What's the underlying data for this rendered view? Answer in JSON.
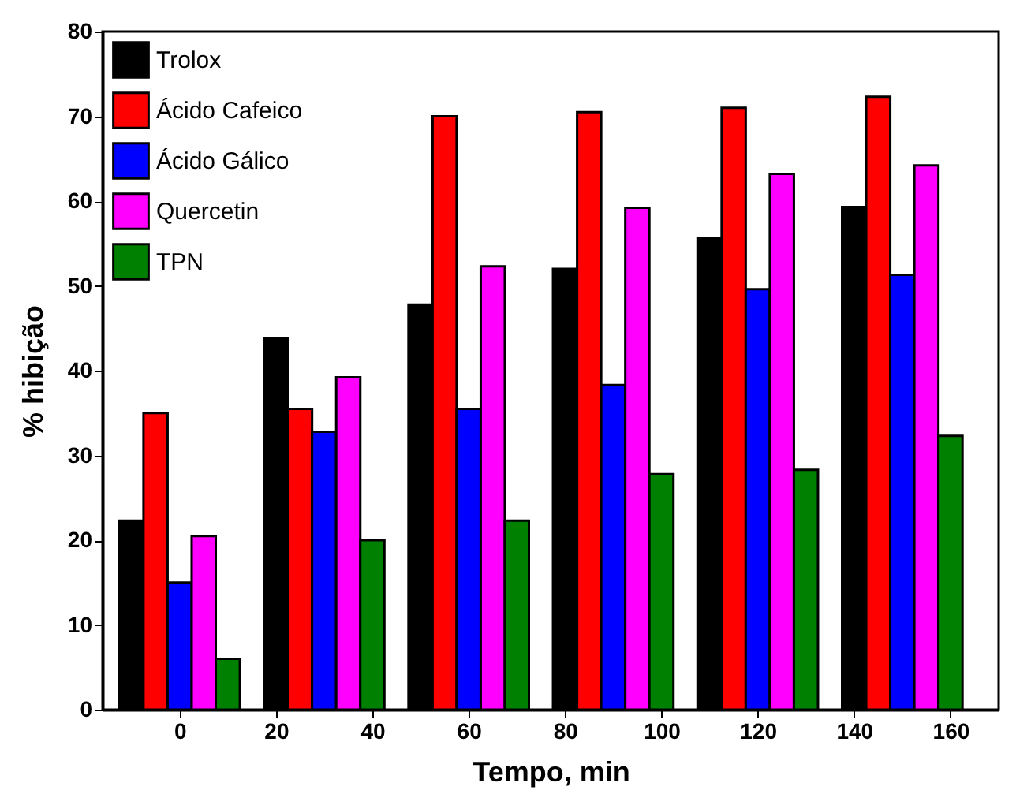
{
  "chart_data": {
    "type": "bar",
    "xlabel": "Tempo, min",
    "ylabel": "% hibição",
    "x": [
      0,
      30,
      60,
      90,
      120,
      150
    ],
    "series": [
      {
        "name": "Trolox",
        "color": "#000000",
        "values": [
          22.3,
          43.8,
          47.8,
          52,
          55.6,
          59.3
        ]
      },
      {
        "name": "Ácido Cafeico",
        "color": "#ff0000",
        "values": [
          35,
          35.5,
          70,
          70.5,
          71,
          72.3
        ]
      },
      {
        "name": "Ácido Gálico",
        "color": "#0000ff",
        "values": [
          15,
          32.8,
          35.5,
          38.3,
          49.6,
          51.3
        ]
      },
      {
        "name": "Quercetin",
        "color": "#ff00ff",
        "values": [
          20.5,
          39.2,
          52.3,
          59.2,
          63.2,
          64.2
        ]
      },
      {
        "name": "TPN",
        "color": "#008000",
        "values": [
          6,
          20,
          22.3,
          27.8,
          28.3,
          32.3
        ]
      }
    ],
    "xlim": [
      -16,
      170
    ],
    "xticks": [
      0,
      20,
      40,
      60,
      80,
      100,
      120,
      140,
      160
    ],
    "ylim": [
      0,
      80
    ],
    "yticks": [
      0,
      10,
      20,
      30,
      40,
      50,
      60,
      70,
      80
    ],
    "legend": "top left",
    "grid": false
  }
}
